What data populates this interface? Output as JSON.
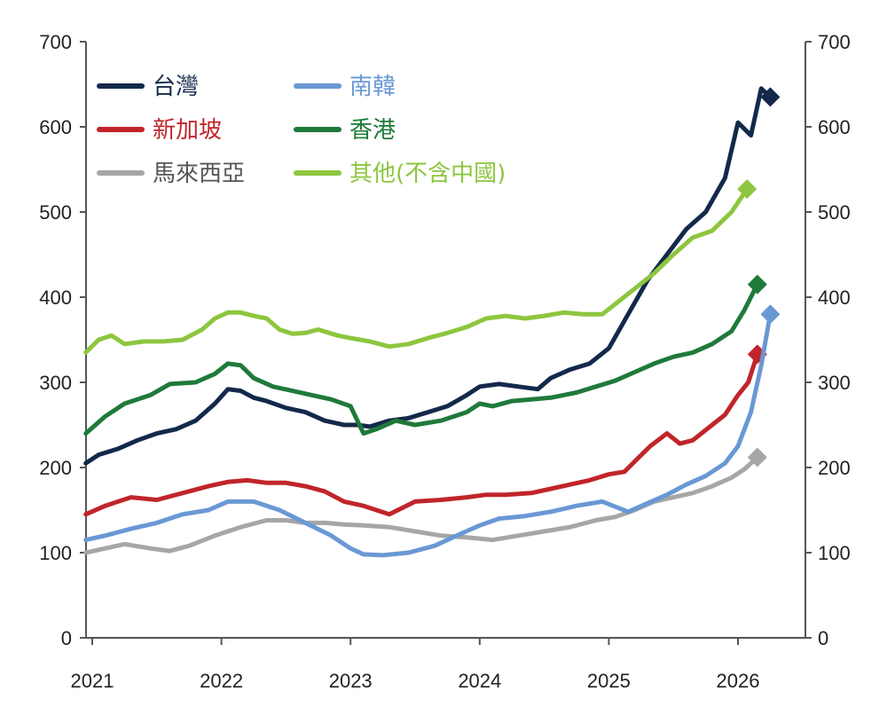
{
  "chart_data": {
    "type": "line",
    "title": "",
    "xlabel": "",
    "ylabel": "",
    "xlim": [
      2020.95,
      2026.55
    ],
    "ylim": [
      0,
      700
    ],
    "y_ticks": [
      0,
      100,
      200,
      300,
      400,
      500,
      600,
      700
    ],
    "y_tick_labels": [
      "0",
      "100",
      "200",
      "300",
      "400",
      "500",
      "600",
      "700"
    ],
    "x_ticks": [
      2021,
      2022,
      2023,
      2024,
      2025,
      2026
    ],
    "x_tick_labels": [
      "2021",
      "2022",
      "2023",
      "2024",
      "2025",
      "2026"
    ],
    "grid": false,
    "legend_position": "top-left",
    "dual_y_axis": true,
    "series": [
      {
        "name": "台灣",
        "color": "#13294b",
        "end_marker": "diamond",
        "x": [
          2020.95,
          2021.05,
          2021.2,
          2021.35,
          2021.5,
          2021.65,
          2021.8,
          2021.95,
          2022.05,
          2022.15,
          2022.25,
          2022.35,
          2022.5,
          2022.65,
          2022.8,
          2022.95,
          2023.05,
          2023.15,
          2023.3,
          2023.45,
          2023.6,
          2023.75,
          2023.9,
          2024.0,
          2024.15,
          2024.3,
          2024.45,
          2024.55,
          2024.7,
          2024.85,
          2025.0,
          2025.15,
          2025.3,
          2025.45,
          2025.6,
          2025.75,
          2025.9,
          2026.0,
          2026.1,
          2026.18,
          2026.25
        ],
        "values": [
          205,
          215,
          222,
          232,
          240,
          245,
          255,
          275,
          292,
          290,
          282,
          278,
          270,
          265,
          255,
          250,
          250,
          248,
          255,
          258,
          265,
          272,
          285,
          295,
          298,
          295,
          292,
          305,
          315,
          322,
          340,
          380,
          420,
          450,
          480,
          500,
          540,
          605,
          590,
          645,
          635
        ]
      },
      {
        "name": "新加坡",
        "color": "#c0252a",
        "end_marker": "diamond",
        "x": [
          2020.95,
          2021.1,
          2021.3,
          2021.5,
          2021.7,
          2021.9,
          2022.05,
          2022.2,
          2022.35,
          2022.5,
          2022.65,
          2022.8,
          2022.95,
          2023.1,
          2023.3,
          2023.5,
          2023.7,
          2023.9,
          2024.05,
          2024.2,
          2024.4,
          2024.55,
          2024.7,
          2024.85,
          2025.0,
          2025.12,
          2025.22,
          2025.32,
          2025.45,
          2025.55,
          2025.65,
          2025.8,
          2025.9,
          2026.0,
          2026.08,
          2026.15
        ],
        "values": [
          145,
          155,
          165,
          162,
          170,
          178,
          183,
          185,
          182,
          182,
          178,
          172,
          160,
          155,
          145,
          160,
          162,
          165,
          168,
          168,
          170,
          175,
          180,
          185,
          192,
          195,
          210,
          225,
          240,
          228,
          232,
          250,
          262,
          285,
          300,
          333
        ]
      },
      {
        "name": "馬來西亞",
        "color": "#a6a6a6",
        "end_marker": "diamond",
        "x": [
          2020.95,
          2021.1,
          2021.25,
          2021.45,
          2021.6,
          2021.75,
          2021.95,
          2022.15,
          2022.35,
          2022.5,
          2022.65,
          2022.8,
          2022.95,
          2023.1,
          2023.3,
          2023.5,
          2023.7,
          2023.9,
          2024.1,
          2024.3,
          2024.5,
          2024.7,
          2024.9,
          2025.05,
          2025.2,
          2025.35,
          2025.5,
          2025.65,
          2025.8,
          2025.95,
          2026.05,
          2026.15
        ],
        "values": [
          100,
          105,
          110,
          105,
          102,
          108,
          120,
          130,
          138,
          138,
          135,
          135,
          133,
          132,
          130,
          125,
          120,
          118,
          115,
          120,
          125,
          130,
          138,
          142,
          150,
          160,
          165,
          170,
          178,
          188,
          198,
          212
        ]
      },
      {
        "name": "南韓",
        "color": "#6a98d4",
        "end_marker": "diamond",
        "x": [
          2020.95,
          2021.1,
          2021.3,
          2021.5,
          2021.7,
          2021.9,
          2022.05,
          2022.25,
          2022.45,
          2022.65,
          2022.85,
          2023.0,
          2023.1,
          2023.25,
          2023.45,
          2023.65,
          2023.85,
          2024.0,
          2024.15,
          2024.35,
          2024.55,
          2024.75,
          2024.95,
          2025.15,
          2025.3,
          2025.45,
          2025.6,
          2025.75,
          2025.9,
          2026.0,
          2026.1,
          2026.18,
          2026.25
        ],
        "values": [
          115,
          120,
          128,
          135,
          145,
          150,
          160,
          160,
          150,
          135,
          120,
          105,
          98,
          97,
          100,
          108,
          122,
          132,
          140,
          143,
          148,
          155,
          160,
          148,
          158,
          168,
          180,
          190,
          205,
          225,
          265,
          320,
          380
        ]
      },
      {
        "name": "香港",
        "color": "#1f7a3a",
        "end_marker": "diamond",
        "x": [
          2020.95,
          2021.1,
          2021.25,
          2021.45,
          2021.6,
          2021.8,
          2021.95,
          2022.05,
          2022.15,
          2022.25,
          2022.4,
          2022.55,
          2022.7,
          2022.85,
          2023.0,
          2023.1,
          2023.2,
          2023.35,
          2023.5,
          2023.7,
          2023.9,
          2024.0,
          2024.1,
          2024.25,
          2024.4,
          2024.55,
          2024.75,
          2024.9,
          2025.05,
          2025.2,
          2025.35,
          2025.5,
          2025.65,
          2025.8,
          2025.95,
          2026.05,
          2026.15
        ],
        "values": [
          240,
          260,
          275,
          285,
          298,
          300,
          310,
          322,
          320,
          305,
          295,
          290,
          285,
          280,
          272,
          240,
          245,
          255,
          250,
          255,
          265,
          275,
          272,
          278,
          280,
          282,
          288,
          295,
          302,
          312,
          322,
          330,
          335,
          345,
          360,
          385,
          415
        ]
      },
      {
        "name": "其他(不含中國)",
        "color": "#8dc63f",
        "end_marker": "diamond",
        "x": [
          2020.95,
          2021.05,
          2021.15,
          2021.25,
          2021.4,
          2021.55,
          2021.7,
          2021.85,
          2021.95,
          2022.05,
          2022.15,
          2022.25,
          2022.35,
          2022.45,
          2022.55,
          2022.65,
          2022.75,
          2022.9,
          2023.0,
          2023.15,
          2023.3,
          2023.45,
          2023.6,
          2023.75,
          2023.9,
          2024.05,
          2024.2,
          2024.35,
          2024.5,
          2024.65,
          2024.8,
          2024.95,
          2025.05,
          2025.2,
          2025.35,
          2025.5,
          2025.65,
          2025.8,
          2025.95,
          2026.07
        ],
        "values": [
          335,
          350,
          355,
          345,
          348,
          348,
          350,
          362,
          375,
          382,
          382,
          378,
          375,
          362,
          357,
          358,
          362,
          355,
          352,
          348,
          342,
          345,
          352,
          358,
          365,
          375,
          378,
          375,
          378,
          382,
          380,
          380,
          392,
          410,
          428,
          450,
          470,
          478,
          500,
          527
        ]
      }
    ]
  }
}
